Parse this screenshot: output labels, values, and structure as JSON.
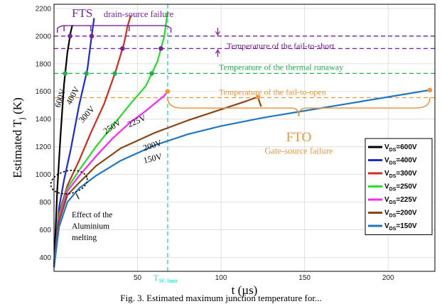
{
  "chart_data": {
    "type": "line",
    "title": "",
    "xlabel": "t (µs)",
    "ylabel": "Estimated T_j (K)",
    "xlim": [
      0,
      228
    ],
    "ylim": [
      300,
      2230
    ],
    "xticks": [
      50,
      100,
      150,
      200
    ],
    "yticks": [
      400,
      600,
      800,
      1000,
      1200,
      1400,
      1600,
      1800,
      2000,
      2200
    ],
    "grid": true,
    "legend_position": "bottom-right",
    "series": [
      {
        "name": "VDS=600V",
        "legend_main": "V",
        "legend_sub": "DS",
        "legend_tail": "=600V",
        "curve_label": "600V",
        "color": "#000000",
        "x": [
          0,
          2,
          4,
          6,
          8,
          10,
          11
        ],
        "y": [
          330,
          900,
          1300,
          1650,
          1880,
          2030,
          2080
        ]
      },
      {
        "name": "VDS=400V",
        "legend_main": "V",
        "legend_sub": "DS",
        "legend_tail": "=400V",
        "curve_label": "400V",
        "color": "#1a2ad6",
        "x": [
          0,
          3,
          6,
          10,
          15,
          20,
          22,
          24
        ],
        "y": [
          330,
          760,
          960,
          1180,
          1500,
          1760,
          1950,
          2130
        ]
      },
      {
        "name": "VDS=300V",
        "legend_main": "V",
        "legend_sub": "DS",
        "legend_tail": "=300V",
        "curve_label": "300V",
        "color": "#d62a1a",
        "x": [
          0,
          3,
          8,
          15,
          22,
          30,
          37,
          42,
          44,
          46
        ],
        "y": [
          330,
          720,
          920,
          1100,
          1300,
          1510,
          1750,
          1950,
          2070,
          2150
        ]
      },
      {
        "name": "VDS=250V",
        "legend_main": "V",
        "legend_sub": "DS",
        "legend_tail": "=250V",
        "curve_label": "250V",
        "color": "#22e022",
        "x": [
          0,
          3,
          8,
          15,
          25,
          35,
          45,
          55,
          62,
          66,
          68
        ],
        "y": [
          330,
          700,
          900,
          1030,
          1200,
          1350,
          1500,
          1640,
          1820,
          2000,
          2180
        ]
      },
      {
        "name": "VDS=225V",
        "legend_main": "V",
        "legend_sub": "DS",
        "legend_tail": "=225V",
        "curve_label": "225V",
        "color": "#ff22ff",
        "x": [
          0,
          3,
          8,
          15,
          25,
          35,
          45,
          55,
          62,
          66,
          68
        ],
        "y": [
          330,
          680,
          880,
          990,
          1130,
          1260,
          1370,
          1460,
          1530,
          1570,
          1600
        ]
      },
      {
        "name": "VDS=200V",
        "legend_main": "V",
        "legend_sub": "DS",
        "legend_tail": "=200V",
        "curve_label": "200V",
        "color": "#8b4513",
        "x": [
          0,
          3,
          8,
          15,
          25,
          40,
          60,
          80,
          100,
          115,
          122,
          124
        ],
        "y": [
          330,
          660,
          850,
          940,
          1060,
          1190,
          1300,
          1390,
          1470,
          1530,
          1560,
          1490
        ]
      },
      {
        "name": "VDS=150V",
        "legend_main": "V",
        "legend_sub": "DS",
        "legend_tail": "=150V",
        "curve_label": "150V",
        "color": "#1f77c4",
        "x": [
          0,
          3,
          8,
          15,
          25,
          40,
          60,
          80,
          100,
          125,
          150,
          175,
          200,
          225
        ],
        "y": [
          330,
          620,
          800,
          900,
          990,
          1100,
          1210,
          1290,
          1350,
          1410,
          1460,
          1510,
          1560,
          1610
        ]
      }
    ],
    "reference_lines": [
      {
        "label": "Temperature of the fail-to-short",
        "y": [
          2000,
          1910
        ],
        "color": "#7b1fa2"
      },
      {
        "label": "Temperature of the thermal runaway",
        "y": [
          1730
        ],
        "color": "#22b14c"
      },
      {
        "label": "Temperature of the fail-to-open",
        "y": [
          1555
        ],
        "color": "#f0943e"
      }
    ],
    "tsc_limit": {
      "x": 68,
      "main": "T",
      "sub": "SC limit",
      "color": "#22e0d0"
    },
    "annotations": {
      "fts_main": "FTS",
      "fts_sub": "drain-source failure",
      "fto_main": "FTO",
      "fto_sub": "Gate-source failure",
      "alu_line1": "Effect of the",
      "alu_line2": "Aluminium",
      "alu_line3": "melting"
    }
  },
  "caption": "Fig. 3. Estimated maximum junction temperature for..."
}
